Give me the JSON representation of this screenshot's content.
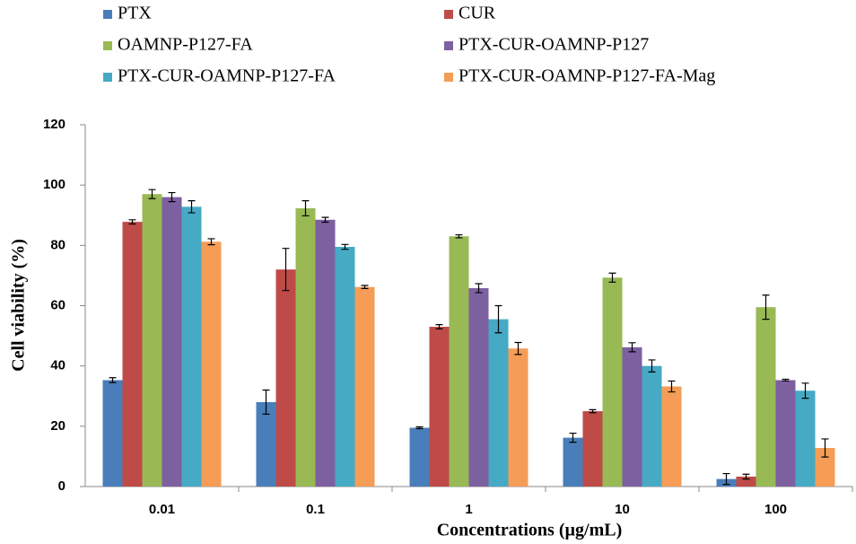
{
  "chart_data": {
    "type": "bar",
    "xlabel": "Concentrations  (µg/mL)",
    "ylabel": "Cell viability  (%)",
    "categories": [
      "0.01",
      "0.1",
      "1",
      "10",
      "100"
    ],
    "ylim": [
      0,
      120
    ],
    "yticks": [
      0,
      20,
      40,
      60,
      80,
      100,
      120
    ],
    "legend": "top",
    "series": [
      {
        "name": "PTX",
        "color": "#4a7ebb",
        "values": [
          35.3,
          28,
          19.5,
          16.2,
          2.5
        ],
        "errors": [
          0.8,
          4,
          0.3,
          1.5,
          1.8
        ]
      },
      {
        "name": "CUR",
        "color": "#be4b48",
        "values": [
          87.8,
          72,
          53,
          25,
          3.3
        ],
        "errors": [
          0.7,
          7,
          0.7,
          0.5,
          0.8
        ]
      },
      {
        "name": "OAMNP-P127-FA",
        "color": "#98b954",
        "values": [
          97,
          92.3,
          83,
          69.3,
          59.5
        ],
        "errors": [
          1.5,
          2.5,
          0.5,
          1.5,
          4
        ]
      },
      {
        "name": "PTX-CUR-OAMNP-P127",
        "color": "#7d60a0",
        "values": [
          96,
          88.5,
          65.8,
          46.2,
          35.3
        ],
        "errors": [
          1.5,
          0.8,
          1.5,
          1.5,
          0.3
        ]
      },
      {
        "name": "PTX-CUR-OAMNP-P127-FA",
        "color": "#46aac5",
        "values": [
          92.8,
          79.5,
          55.5,
          40,
          31.8
        ],
        "errors": [
          2,
          0.8,
          4.5,
          2,
          2.5
        ]
      },
      {
        "name": "PTX-CUR-OAMNP-P127-FA-Mag",
        "color": "#f59d56",
        "values": [
          81.2,
          66.2,
          45.8,
          33.2,
          12.8
        ],
        "errors": [
          1,
          0.5,
          2,
          1.8,
          3
        ]
      }
    ]
  }
}
